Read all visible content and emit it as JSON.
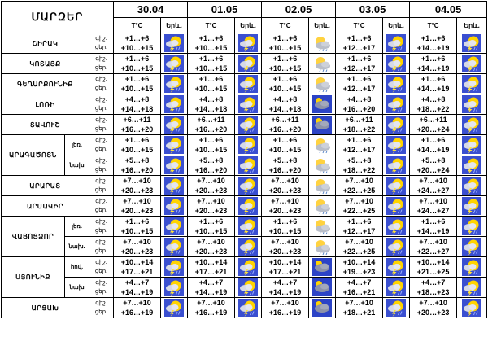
{
  "header": {
    "region_title": "ՄԱՐԶԵՐ",
    "dates": [
      "30.04",
      "01.05",
      "02.05",
      "03.05",
      "04.05"
    ],
    "temp_label": "T°C",
    "wx_label": "Երև."
  },
  "time_of_day": [
    "գիշ.",
    "ցեր."
  ],
  "icon_names": {
    "storm": "thunderstorm-icon",
    "partly": "partly-cloudy-rain-icon",
    "cloud": "cloudy-icon"
  },
  "rows": [
    {
      "region": "ՇԻՐԱԿ",
      "temps": [
        [
          "+1…+6",
          "+10…+15"
        ],
        [
          "+1…+6",
          "+10…+15"
        ],
        [
          "+1…+6",
          "+10…+15"
        ],
        [
          "+1…+6",
          "+12…+17"
        ],
        [
          "+1…+6",
          "+14…+19"
        ]
      ],
      "icons": [
        "storm",
        "storm",
        "partly",
        "storm",
        "storm"
      ]
    },
    {
      "region": "ԿՈՏԱՅՔ",
      "temps": [
        [
          "+1…+6",
          "+10…+15"
        ],
        [
          "+1…+6",
          "+10…+15"
        ],
        [
          "+1…+6",
          "+10…+15"
        ],
        [
          "+1…+6",
          "+12…+17"
        ],
        [
          "+1…+6",
          "+14…+19"
        ]
      ],
      "icons": [
        "storm",
        "storm",
        "partly",
        "storm",
        "storm"
      ]
    },
    {
      "region": "ԳԵՂԱՐՔՈՒՆԻՔ",
      "temps": [
        [
          "+1…+6",
          "+10…+15"
        ],
        [
          "+1…+6",
          "+10…+15"
        ],
        [
          "+1…+6",
          "+10…+15"
        ],
        [
          "+1…+6",
          "+12…+17"
        ],
        [
          "+1…+6",
          "+14…+19"
        ]
      ],
      "icons": [
        "storm",
        "storm",
        "partly",
        "storm",
        "storm"
      ]
    },
    {
      "region": "ԼՈՌԻ",
      "temps": [
        [
          "+4…+8",
          "+14…+18"
        ],
        [
          "+4…+8",
          "+14…+18"
        ],
        [
          "+4…+8",
          "+14…+18"
        ],
        [
          "+4…+8",
          "+16…+20"
        ],
        [
          "+4…+8",
          "+18…+22"
        ]
      ],
      "icons": [
        "storm",
        "storm",
        "cloud",
        "storm",
        "storm"
      ]
    },
    {
      "region": "ՏԱՎՈՒՇ",
      "temps": [
        [
          "+6…+11",
          "+16…+20"
        ],
        [
          "+6…+11",
          "+16…+20"
        ],
        [
          "+6…+11",
          "+16…+20"
        ],
        [
          "+6…+11",
          "+18…+22"
        ],
        [
          "+6…+11",
          "+20…+24"
        ]
      ],
      "icons": [
        "storm",
        "storm",
        "cloud",
        "storm",
        "storm"
      ]
    },
    {
      "region": "ԱՐԱԳԱԾՈՏՆ",
      "sub": "լեռ.",
      "temps": [
        [
          "+1…+6",
          "+10…+15"
        ],
        [
          "+1…+6",
          "+10…+15"
        ],
        [
          "+1…+6",
          "+10…+15"
        ],
        [
          "+1…+6",
          "+12…+17"
        ],
        [
          "+1…+6",
          "+14…+19"
        ]
      ],
      "icons": [
        "storm",
        "storm",
        "partly",
        "storm",
        "storm"
      ]
    },
    {
      "sub": "նախ",
      "temps": [
        [
          "+5…+8",
          "+16…+20"
        ],
        [
          "+5…+8",
          "+16…+20"
        ],
        [
          "+5…+8",
          "+16…+20"
        ],
        [
          "+5…+8",
          "+18…+22"
        ],
        [
          "+5…+8",
          "+20…+24"
        ]
      ],
      "icons": [
        "storm",
        "storm",
        "partly",
        "storm",
        "storm"
      ]
    },
    {
      "region": "ԱՐԱՐԱՏ",
      "temps": [
        [
          "+7…+10",
          "+20…+23"
        ],
        [
          "+7…+10",
          "+20…+23"
        ],
        [
          "+7…+10",
          "+20…+23"
        ],
        [
          "+7…+10",
          "+22…+25"
        ],
        [
          "+7…+10",
          "+24…+27"
        ]
      ],
      "icons": [
        "storm",
        "storm",
        "partly",
        "storm",
        "storm"
      ]
    },
    {
      "region": "ԱՐՄԱՎԻՐ",
      "temps": [
        [
          "+7…+10",
          "+20…+23"
        ],
        [
          "+7…+10",
          "+20…+23"
        ],
        [
          "+7…+10",
          "+20…+23"
        ],
        [
          "+7…+10",
          "+22…+25"
        ],
        [
          "+7…+10",
          "+24…+27"
        ]
      ],
      "icons": [
        "storm",
        "storm",
        "partly",
        "storm",
        "storm"
      ]
    },
    {
      "region": "ՎԱՅՈՑՁՈՐ",
      "sub": "լեռ.",
      "temps": [
        [
          "+1…+6",
          "+10…+15"
        ],
        [
          "+1…+6",
          "+10…+15"
        ],
        [
          "+1…+6",
          "+10…+15"
        ],
        [
          "+1…+6",
          "+12…+17"
        ],
        [
          "+1…+6",
          "+14…+19"
        ]
      ],
      "icons": [
        "storm",
        "storm",
        "partly",
        "storm",
        "storm"
      ]
    },
    {
      "sub": "նախ.",
      "temps": [
        [
          "+7…+10",
          "+20…+23"
        ],
        [
          "+7…+10",
          "+20…+23"
        ],
        [
          "+7…+10",
          "+20…+23"
        ],
        [
          "+7…+10",
          "+22…+25"
        ],
        [
          "+7…+10",
          "+22…+27"
        ]
      ],
      "icons": [
        "storm",
        "storm",
        "partly",
        "storm",
        "storm"
      ]
    },
    {
      "region": "ՍՅՈՒՆԻՔ",
      "sub": "հով.",
      "temps": [
        [
          "+10…+14",
          "+17…+21"
        ],
        [
          "+10…+14",
          "+17…+21"
        ],
        [
          "+10…+14",
          "+17…+21"
        ],
        [
          "+10…+14",
          "+19…+23"
        ],
        [
          "+10…+14",
          "+21…+25"
        ]
      ],
      "icons": [
        "storm",
        "storm",
        "cloud",
        "storm",
        "storm"
      ]
    },
    {
      "sub": "նախ",
      "temps": [
        [
          "+4…+7",
          "+14…+19"
        ],
        [
          "+4…+7",
          "+14…+19"
        ],
        [
          "+4…+7",
          "+14…+19"
        ],
        [
          "+4…+7",
          "+16…+21"
        ],
        [
          "+4…+7",
          "+18…+23"
        ]
      ],
      "icons": [
        "storm",
        "storm",
        "cloud",
        "storm",
        "storm"
      ]
    },
    {
      "region": "ԱՐՑԱԽ",
      "temps": [
        [
          "+7…+10",
          "+16…+19"
        ],
        [
          "+7…+10",
          "+16…+19"
        ],
        [
          "+7…+10",
          "+16…+19"
        ],
        [
          "+7…+10",
          "+18…+21"
        ],
        [
          "+7…+10",
          "+20…+23"
        ]
      ],
      "icons": [
        "storm",
        "storm",
        "cloud",
        "storm",
        "storm"
      ]
    }
  ]
}
